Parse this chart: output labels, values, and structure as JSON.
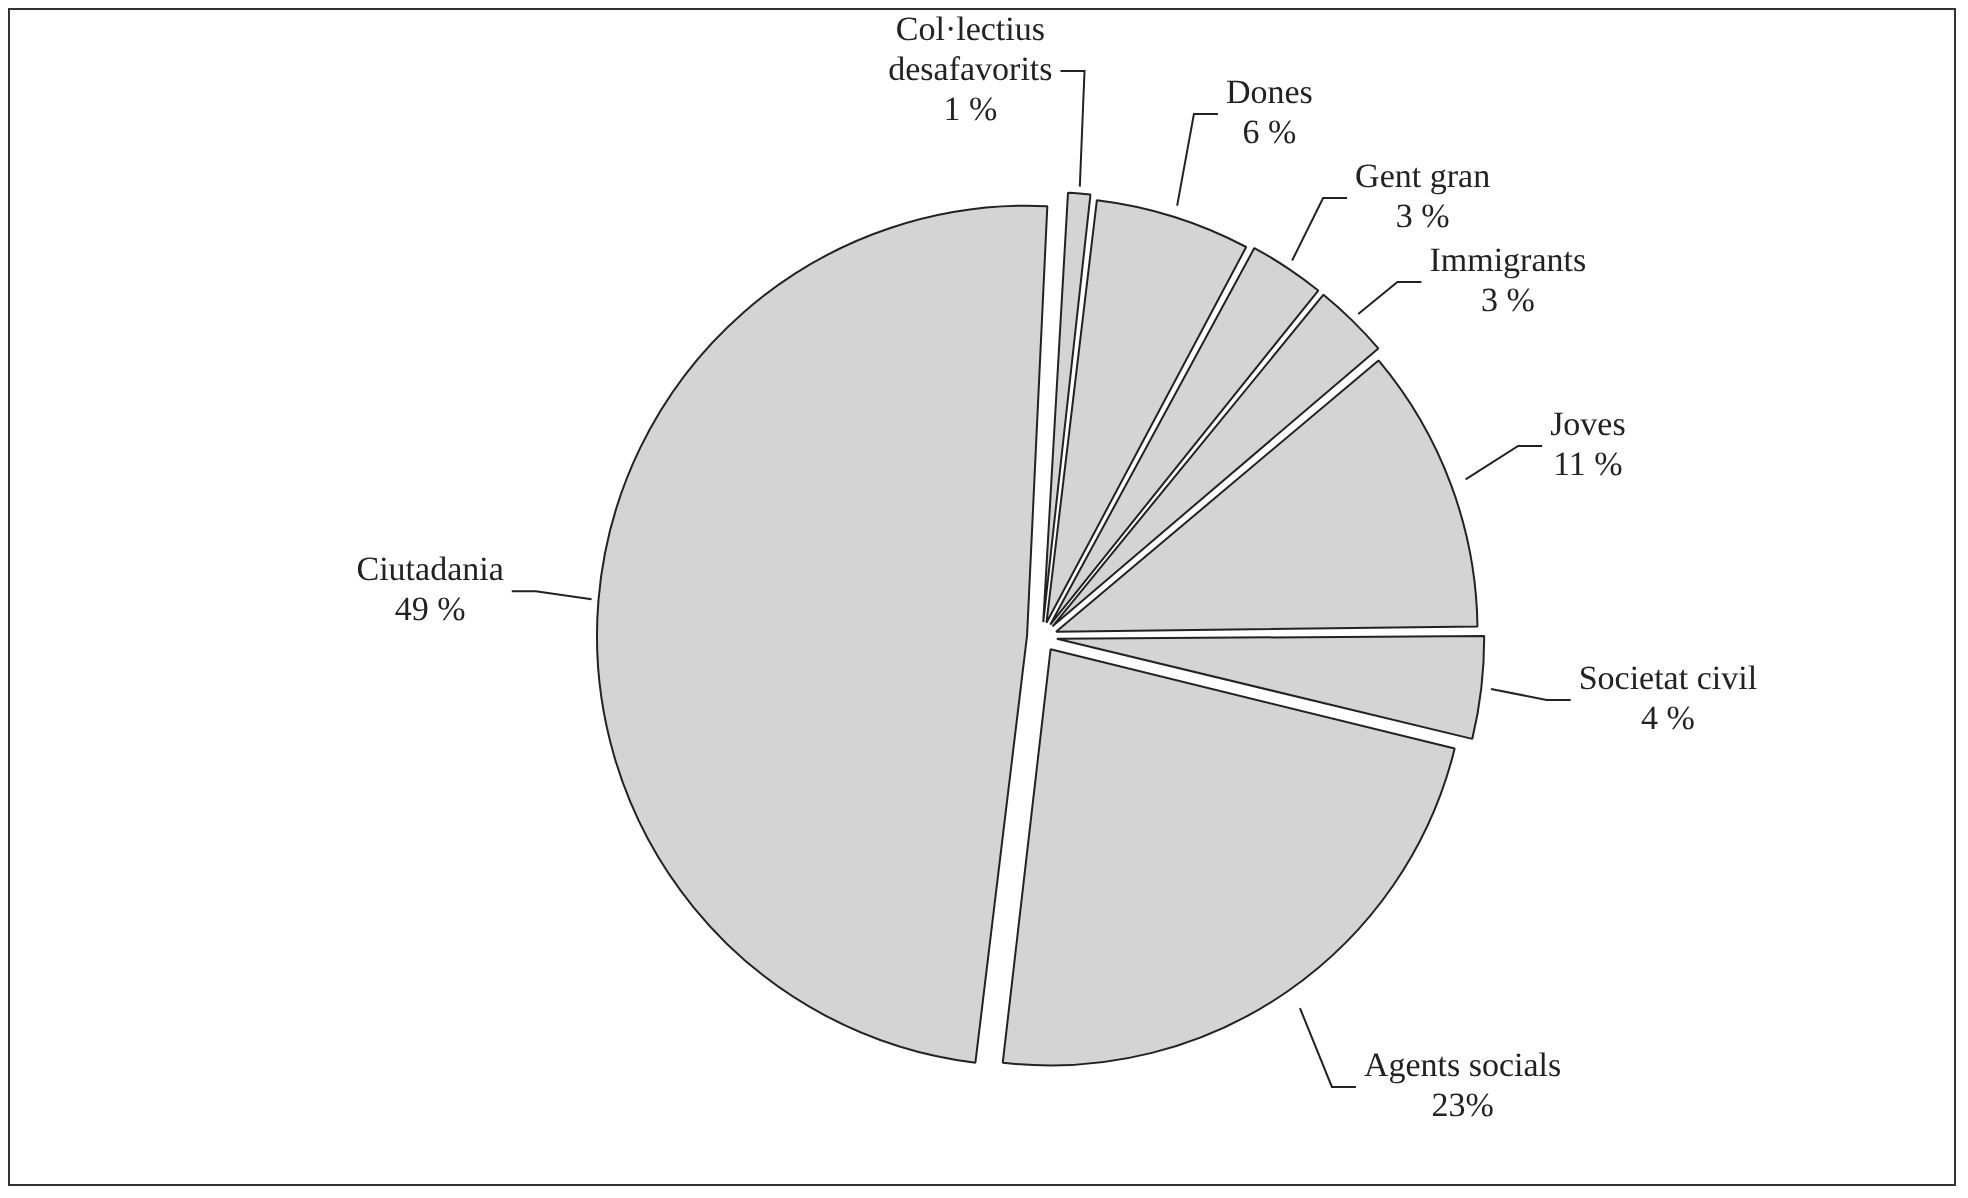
{
  "chart_data": {
    "type": "pie",
    "categories": [
      "Col·lectius desafavorits",
      "Dones",
      "Gent gran",
      "Immigrants",
      "Joves",
      "Societat civil",
      "Agents socials",
      "Ciutadania"
    ],
    "values": [
      1,
      6,
      3,
      3,
      11,
      4,
      23,
      49
    ],
    "value_labels": [
      "1 %",
      "6 %",
      "3 %",
      "3 %",
      "11 %",
      "4 %",
      "23%",
      "49 %"
    ],
    "colors": [
      "#d4d4d4",
      "#d4d4d4",
      "#d4d4d4",
      "#d4d4d4",
      "#d4d4d4",
      "#d4d4d4",
      "#d4d4d4",
      "#d4d4d4"
    ],
    "legend": false
  }
}
